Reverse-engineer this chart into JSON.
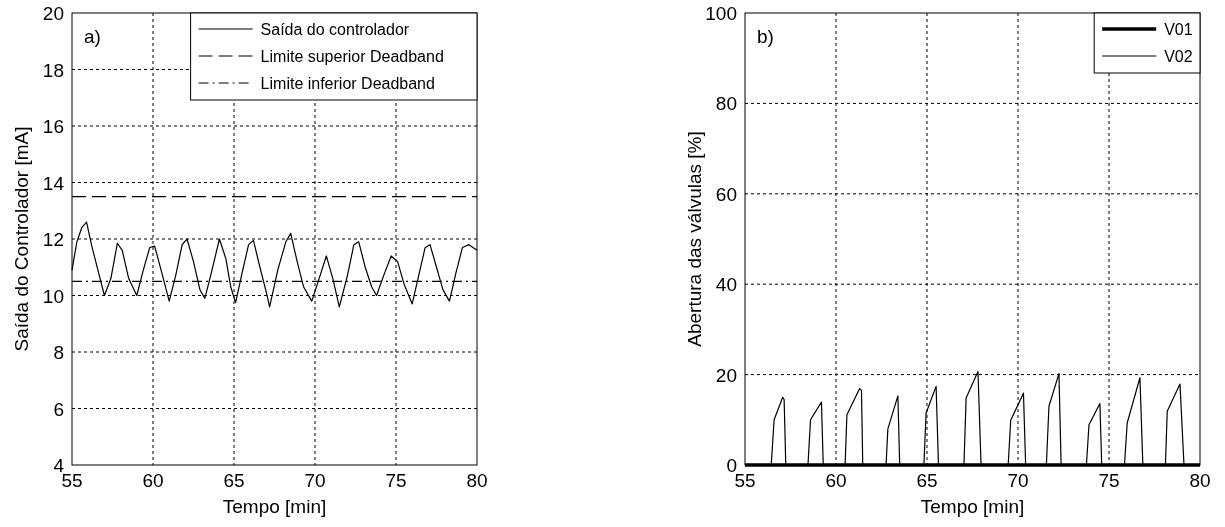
{
  "chart_data": [
    {
      "type": "line",
      "xlabel": "Tempo [min]",
      "ylabel": "Saída do Controlador [mA]",
      "annotations": [
        "a)"
      ],
      "xlim": [
        55,
        80
      ],
      "xticks": [
        55,
        60,
        65,
        70,
        75,
        80
      ],
      "ylim": [
        4,
        20
      ],
      "yticks": [
        4,
        6,
        8,
        10,
        12,
        14,
        16,
        18,
        20
      ],
      "grid": true,
      "legend": "top right",
      "series": [
        {
          "name": "Saída do controlador",
          "color": "#000000",
          "x": [
            55,
            55.3,
            55.6,
            55.9,
            56.2,
            56.6,
            57.0,
            57.4,
            57.8,
            58.1,
            58.5,
            59.0,
            59.4,
            59.8,
            60.1,
            60.5,
            61.0,
            61.4,
            61.8,
            62.1,
            62.5,
            62.9,
            63.2,
            63.6,
            64.1,
            64.5,
            64.8,
            65.1,
            65.5,
            65.9,
            66.2,
            66.6,
            67.0,
            67.2,
            67.7,
            68.2,
            68.5,
            68.9,
            69.3,
            69.8,
            70.2,
            70.7,
            71.1,
            71.5,
            72.0,
            72.4,
            72.7,
            73.1,
            73.5,
            73.8,
            74.3,
            74.7,
            75.1,
            75.5,
            76.0,
            76.4,
            76.8,
            77.1,
            77.5,
            77.9,
            78.3,
            78.7,
            79.1,
            79.5,
            80
          ],
          "values": [
            10.9,
            11.9,
            12.4,
            12.6,
            11.8,
            10.9,
            10.0,
            10.6,
            11.85,
            11.6,
            10.6,
            10.0,
            10.9,
            11.7,
            11.75,
            10.9,
            9.8,
            10.7,
            11.8,
            12.0,
            11.2,
            10.2,
            9.9,
            10.8,
            12.0,
            11.3,
            10.3,
            9.75,
            10.8,
            11.8,
            11.95,
            11.0,
            10.1,
            9.6,
            10.9,
            11.9,
            12.2,
            11.2,
            10.3,
            9.8,
            10.5,
            11.4,
            10.6,
            9.6,
            10.7,
            11.8,
            11.9,
            11.0,
            10.3,
            10.0,
            10.8,
            11.4,
            11.2,
            10.4,
            9.7,
            10.7,
            11.7,
            11.8,
            11.0,
            10.2,
            9.8,
            10.8,
            11.7,
            11.8,
            11.6
          ]
        }
      ],
      "ref_lines": [
        {
          "axis": "y",
          "value": 13.5,
          "label": "Limite superior Deadband",
          "color": "#000000",
          "line_style": "dashed"
        },
        {
          "axis": "y",
          "value": 10.5,
          "label": "Limite inferior Deadband",
          "color": "#000000",
          "line_style": "dashdot"
        }
      ]
    },
    {
      "type": "line",
      "xlabel": "Tempo [min]",
      "ylabel": "Abertura das válvulas [%]",
      "annotations": [
        "b)"
      ],
      "xlim": [
        55,
        80
      ],
      "xticks": [
        55,
        60,
        65,
        70,
        75,
        80
      ],
      "ylim": [
        0,
        100
      ],
      "yticks": [
        0,
        20,
        40,
        60,
        80,
        100
      ],
      "grid": true,
      "legend": "top right",
      "series": [
        {
          "name": "V01",
          "color": "#000000",
          "x": [
            55,
            80
          ],
          "values": [
            0,
            0
          ]
        },
        {
          "name": "V02",
          "color": "#000000",
          "x": [
            56.44,
            56.6,
            57.07,
            57.15,
            57.24,
            57.8,
            58.46,
            58.6,
            59.2,
            59.3,
            59.9,
            60.5,
            60.6,
            61.3,
            61.4,
            61.47,
            62.1,
            62.75,
            62.85,
            63.4,
            63.5,
            64.2,
            64.83,
            64.95,
            65.5,
            65.63,
            66.3,
            67.03,
            67.15,
            67.8,
            67.97,
            68.7,
            69.46,
            69.6,
            70.3,
            70.42,
            71.0,
            71.56,
            71.7,
            72.25,
            72.37,
            73.0,
            73.76,
            73.9,
            74.5,
            74.6,
            75.2,
            75.85,
            76.0,
            76.7,
            76.86,
            77.5,
            78.1,
            78.2,
            78.9,
            79.12
          ],
          "values": [
            0,
            10,
            15.0,
            14.5,
            0,
            null,
            0,
            10,
            13.9,
            0,
            null,
            0,
            11.1,
            16.9,
            16.5,
            0,
            null,
            0,
            8,
            15.3,
            0,
            null,
            0,
            11.5,
            17.4,
            0,
            null,
            0,
            14.8,
            20.7,
            0,
            null,
            0,
            9.9,
            15.9,
            0,
            null,
            0,
            13,
            20.2,
            0,
            null,
            0,
            8.9,
            13.6,
            0,
            null,
            0,
            9.3,
            19.3,
            0,
            null,
            0,
            11.9,
            17.9,
            0
          ]
        }
      ]
    }
  ]
}
